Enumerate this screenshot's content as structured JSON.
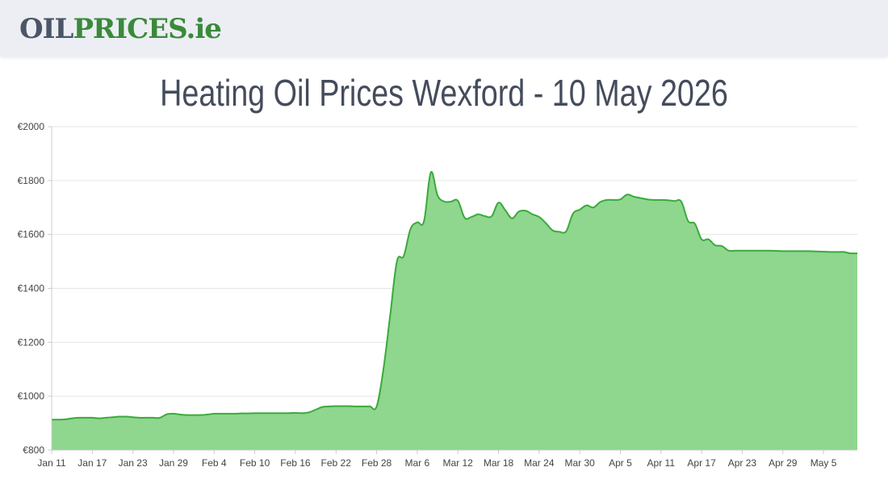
{
  "header": {
    "logo_part1": "OIL",
    "logo_part2": "PRICES",
    "logo_part3": ".ie"
  },
  "page": {
    "title": "Heating Oil Prices Wexford - 10 May 2026"
  },
  "colors": {
    "line": "#3aaa3a",
    "fill": "#8fd68f",
    "grid": "#e6e6e6",
    "axis": "#cccccc"
  },
  "chart_data": {
    "type": "area",
    "title": "Heating Oil Prices Wexford - 10 May 2026",
    "xlabel": "",
    "ylabel": "",
    "ylim": [
      800,
      2000
    ],
    "y_ticks": [
      800,
      1000,
      1200,
      1400,
      1600,
      1800,
      2000
    ],
    "y_tick_labels": [
      "€800",
      "€1000",
      "€1200",
      "€1400",
      "€1600",
      "€1800",
      "€2000"
    ],
    "x_start": "2026-01-11",
    "x_end": "2026-05-10",
    "x_ticks": [
      "2026-01-11",
      "2026-01-17",
      "2026-01-23",
      "2026-01-29",
      "2026-02-04",
      "2026-02-10",
      "2026-02-16",
      "2026-02-22",
      "2026-02-28",
      "2026-03-06",
      "2026-03-12",
      "2026-03-18",
      "2026-03-24",
      "2026-03-30",
      "2026-04-05",
      "2026-04-11",
      "2026-04-17",
      "2026-04-23",
      "2026-04-29",
      "2026-05-05"
    ],
    "x_tick_labels": [
      "Jan 11",
      "Jan 17",
      "Jan 23",
      "Jan 29",
      "Feb 4",
      "Feb 10",
      "Feb 16",
      "Feb 22",
      "Feb 28",
      "Mar 6",
      "Mar 12",
      "Mar 18",
      "Mar 24",
      "Mar 30",
      "Apr 5",
      "Apr 11",
      "Apr 17",
      "Apr 23",
      "Apr 29",
      "May 5"
    ],
    "grid": true,
    "legend": "none",
    "points": [
      [
        "2026-01-11",
        913
      ],
      [
        "2026-01-12",
        913
      ],
      [
        "2026-01-13",
        914
      ],
      [
        "2026-01-14",
        918
      ],
      [
        "2026-01-15",
        920
      ],
      [
        "2026-01-16",
        920
      ],
      [
        "2026-01-17",
        920
      ],
      [
        "2026-01-18",
        918
      ],
      [
        "2026-01-19",
        920
      ],
      [
        "2026-01-20",
        922
      ],
      [
        "2026-01-21",
        924
      ],
      [
        "2026-01-22",
        924
      ],
      [
        "2026-01-23",
        922
      ],
      [
        "2026-01-24",
        920
      ],
      [
        "2026-01-25",
        920
      ],
      [
        "2026-01-26",
        920
      ],
      [
        "2026-01-27",
        920
      ],
      [
        "2026-01-28",
        933
      ],
      [
        "2026-01-29",
        935
      ],
      [
        "2026-01-30",
        932
      ],
      [
        "2026-01-31",
        930
      ],
      [
        "2026-02-01",
        930
      ],
      [
        "2026-02-02",
        930
      ],
      [
        "2026-02-03",
        932
      ],
      [
        "2026-02-04",
        935
      ],
      [
        "2026-02-05",
        935
      ],
      [
        "2026-02-06",
        935
      ],
      [
        "2026-02-07",
        935
      ],
      [
        "2026-02-08",
        936
      ],
      [
        "2026-02-09",
        936
      ],
      [
        "2026-02-10",
        937
      ],
      [
        "2026-02-11",
        937
      ],
      [
        "2026-02-12",
        937
      ],
      [
        "2026-02-13",
        937
      ],
      [
        "2026-02-14",
        937
      ],
      [
        "2026-02-15",
        937
      ],
      [
        "2026-02-16",
        938
      ],
      [
        "2026-02-17",
        937
      ],
      [
        "2026-02-18",
        940
      ],
      [
        "2026-02-19",
        950
      ],
      [
        "2026-02-20",
        960
      ],
      [
        "2026-02-21",
        962
      ],
      [
        "2026-02-22",
        963
      ],
      [
        "2026-02-23",
        963
      ],
      [
        "2026-02-24",
        963
      ],
      [
        "2026-02-25",
        962
      ],
      [
        "2026-02-26",
        962
      ],
      [
        "2026-02-27",
        962
      ],
      [
        "2026-02-28",
        962
      ],
      [
        "2026-03-01",
        1100
      ],
      [
        "2026-03-02",
        1300
      ],
      [
        "2026-03-03",
        1500
      ],
      [
        "2026-03-04",
        1520
      ],
      [
        "2026-03-05",
        1620
      ],
      [
        "2026-03-06",
        1645
      ],
      [
        "2026-03-07",
        1650
      ],
      [
        "2026-03-08",
        1830
      ],
      [
        "2026-03-09",
        1745
      ],
      [
        "2026-03-10",
        1722
      ],
      [
        "2026-03-11",
        1722
      ],
      [
        "2026-03-12",
        1725
      ],
      [
        "2026-03-13",
        1662
      ],
      [
        "2026-03-14",
        1665
      ],
      [
        "2026-03-15",
        1675
      ],
      [
        "2026-03-16",
        1668
      ],
      [
        "2026-03-17",
        1668
      ],
      [
        "2026-03-18",
        1718
      ],
      [
        "2026-03-19",
        1690
      ],
      [
        "2026-03-20",
        1660
      ],
      [
        "2026-03-21",
        1685
      ],
      [
        "2026-03-22",
        1688
      ],
      [
        "2026-03-23",
        1675
      ],
      [
        "2026-03-24",
        1665
      ],
      [
        "2026-03-25",
        1642
      ],
      [
        "2026-03-26",
        1615
      ],
      [
        "2026-03-27",
        1610
      ],
      [
        "2026-03-28",
        1612
      ],
      [
        "2026-03-29",
        1677
      ],
      [
        "2026-03-30",
        1692
      ],
      [
        "2026-03-31",
        1708
      ],
      [
        "2026-04-01",
        1700
      ],
      [
        "2026-04-02",
        1720
      ],
      [
        "2026-04-03",
        1728
      ],
      [
        "2026-04-04",
        1728
      ],
      [
        "2026-04-05",
        1730
      ],
      [
        "2026-04-06",
        1748
      ],
      [
        "2026-04-07",
        1740
      ],
      [
        "2026-04-08",
        1735
      ],
      [
        "2026-04-09",
        1730
      ],
      [
        "2026-04-10",
        1728
      ],
      [
        "2026-04-11",
        1728
      ],
      [
        "2026-04-12",
        1727
      ],
      [
        "2026-04-13",
        1724
      ],
      [
        "2026-04-14",
        1722
      ],
      [
        "2026-04-15",
        1650
      ],
      [
        "2026-04-16",
        1640
      ],
      [
        "2026-04-17",
        1582
      ],
      [
        "2026-04-18",
        1582
      ],
      [
        "2026-04-19",
        1560
      ],
      [
        "2026-04-20",
        1557
      ],
      [
        "2026-04-21",
        1540
      ],
      [
        "2026-04-22",
        1540
      ],
      [
        "2026-04-23",
        1540
      ],
      [
        "2026-04-24",
        1540
      ],
      [
        "2026-04-25",
        1540
      ],
      [
        "2026-04-26",
        1540
      ],
      [
        "2026-04-27",
        1540
      ],
      [
        "2026-04-28",
        1539
      ],
      [
        "2026-04-29",
        1538
      ],
      [
        "2026-04-30",
        1538
      ],
      [
        "2026-05-01",
        1538
      ],
      [
        "2026-05-02",
        1538
      ],
      [
        "2026-05-03",
        1538
      ],
      [
        "2026-05-04",
        1537
      ],
      [
        "2026-05-05",
        1536
      ],
      [
        "2026-05-06",
        1535
      ],
      [
        "2026-05-07",
        1535
      ],
      [
        "2026-05-08",
        1535
      ],
      [
        "2026-05-09",
        1530
      ],
      [
        "2026-05-10",
        1530
      ]
    ]
  }
}
